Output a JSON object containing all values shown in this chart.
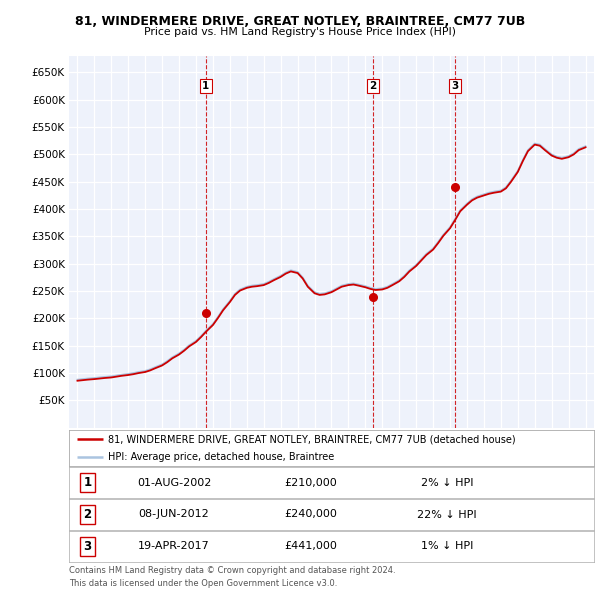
{
  "title1": "81, WINDERMERE DRIVE, GREAT NOTLEY, BRAINTREE, CM77 7UB",
  "title2": "Price paid vs. HM Land Registry's House Price Index (HPI)",
  "legend_line1": "81, WINDERMERE DRIVE, GREAT NOTLEY, BRAINTREE, CM77 7UB (detached house)",
  "legend_line2": "HPI: Average price, detached house, Braintree",
  "transactions": [
    {
      "num": 1,
      "date": "01-AUG-2002",
      "price": 210000,
      "pct": "2%",
      "dir": "↓",
      "x": 2002.58
    },
    {
      "num": 2,
      "date": "08-JUN-2012",
      "price": 240000,
      "pct": "22%",
      "dir": "↓",
      "x": 2012.44
    },
    {
      "num": 3,
      "date": "19-APR-2017",
      "price": 441000,
      "pct": "1%",
      "dir": "↓",
      "x": 2017.29
    }
  ],
  "footnote1": "Contains HM Land Registry data © Crown copyright and database right 2024.",
  "footnote2": "This data is licensed under the Open Government Licence v3.0.",
  "bg_color": "#eef2fb",
  "grid_color": "#ffffff",
  "hpi_color": "#aac4e0",
  "price_color": "#cc0000",
  "vline_color": "#cc0000",
  "ylim": [
    0,
    680000
  ],
  "yticks": [
    50000,
    100000,
    150000,
    200000,
    250000,
    300000,
    350000,
    400000,
    450000,
    500000,
    550000,
    600000,
    650000
  ],
  "xlim_start": 1994.5,
  "xlim_end": 2025.5,
  "years_hpi": [
    1995.0,
    1995.3,
    1995.6,
    1996.0,
    1996.3,
    1996.6,
    1997.0,
    1997.3,
    1997.6,
    1998.0,
    1998.3,
    1998.6,
    1999.0,
    1999.3,
    1999.6,
    2000.0,
    2000.3,
    2000.6,
    2001.0,
    2001.3,
    2001.6,
    2002.0,
    2002.3,
    2002.6,
    2003.0,
    2003.3,
    2003.6,
    2004.0,
    2004.3,
    2004.6,
    2005.0,
    2005.3,
    2005.6,
    2006.0,
    2006.3,
    2006.6,
    2007.0,
    2007.3,
    2007.6,
    2008.0,
    2008.3,
    2008.6,
    2009.0,
    2009.3,
    2009.6,
    2010.0,
    2010.3,
    2010.6,
    2011.0,
    2011.3,
    2011.6,
    2012.0,
    2012.3,
    2012.6,
    2013.0,
    2013.3,
    2013.6,
    2014.0,
    2014.3,
    2014.6,
    2015.0,
    2015.3,
    2015.6,
    2016.0,
    2016.3,
    2016.6,
    2017.0,
    2017.3,
    2017.6,
    2018.0,
    2018.3,
    2018.6,
    2019.0,
    2019.3,
    2019.6,
    2020.0,
    2020.3,
    2020.6,
    2021.0,
    2021.3,
    2021.6,
    2022.0,
    2022.3,
    2022.6,
    2023.0,
    2023.3,
    2023.6,
    2024.0,
    2024.3,
    2024.6,
    2025.0
  ],
  "hpi_values": [
    88000,
    89000,
    90000,
    91000,
    92000,
    93000,
    94000,
    95500,
    97000,
    98500,
    100000,
    102000,
    104000,
    107000,
    111000,
    116000,
    122000,
    129000,
    136000,
    143000,
    151000,
    159000,
    168000,
    178000,
    190000,
    203000,
    217000,
    232000,
    245000,
    253000,
    258000,
    260000,
    261000,
    263000,
    267000,
    272000,
    278000,
    284000,
    288000,
    285000,
    275000,
    260000,
    248000,
    245000,
    246000,
    250000,
    255000,
    260000,
    263000,
    264000,
    262000,
    259000,
    256000,
    254000,
    255000,
    258000,
    263000,
    270000,
    278000,
    288000,
    298000,
    308000,
    318000,
    328000,
    340000,
    353000,
    367000,
    382000,
    398000,
    410000,
    418000,
    423000,
    427000,
    430000,
    432000,
    434000,
    440000,
    452000,
    470000,
    490000,
    508000,
    520000,
    518000,
    510000,
    500000,
    496000,
    494000,
    497000,
    502000,
    510000,
    515000
  ],
  "price_values": [
    86000,
    87000,
    88000,
    89000,
    90000,
    91000,
    92000,
    93500,
    95000,
    96500,
    98000,
    100000,
    102000,
    105000,
    109000,
    114000,
    120000,
    127000,
    134000,
    141000,
    149000,
    157000,
    166000,
    176000,
    188000,
    201000,
    215000,
    230000,
    243000,
    251000,
    256000,
    258000,
    259000,
    261000,
    265000,
    270000,
    276000,
    282000,
    286000,
    283000,
    273000,
    258000,
    246000,
    243000,
    244000,
    248000,
    253000,
    258000,
    261000,
    262000,
    260000,
    257000,
    254000,
    252000,
    253000,
    256000,
    261000,
    268000,
    276000,
    286000,
    296000,
    306000,
    316000,
    326000,
    338000,
    351000,
    365000,
    380000,
    396000,
    408000,
    416000,
    421000,
    425000,
    428000,
    430000,
    432000,
    438000,
    450000,
    468000,
    488000,
    506000,
    518000,
    516000,
    508000,
    498000,
    494000,
    492000,
    495000,
    500000,
    508000,
    513000
  ]
}
